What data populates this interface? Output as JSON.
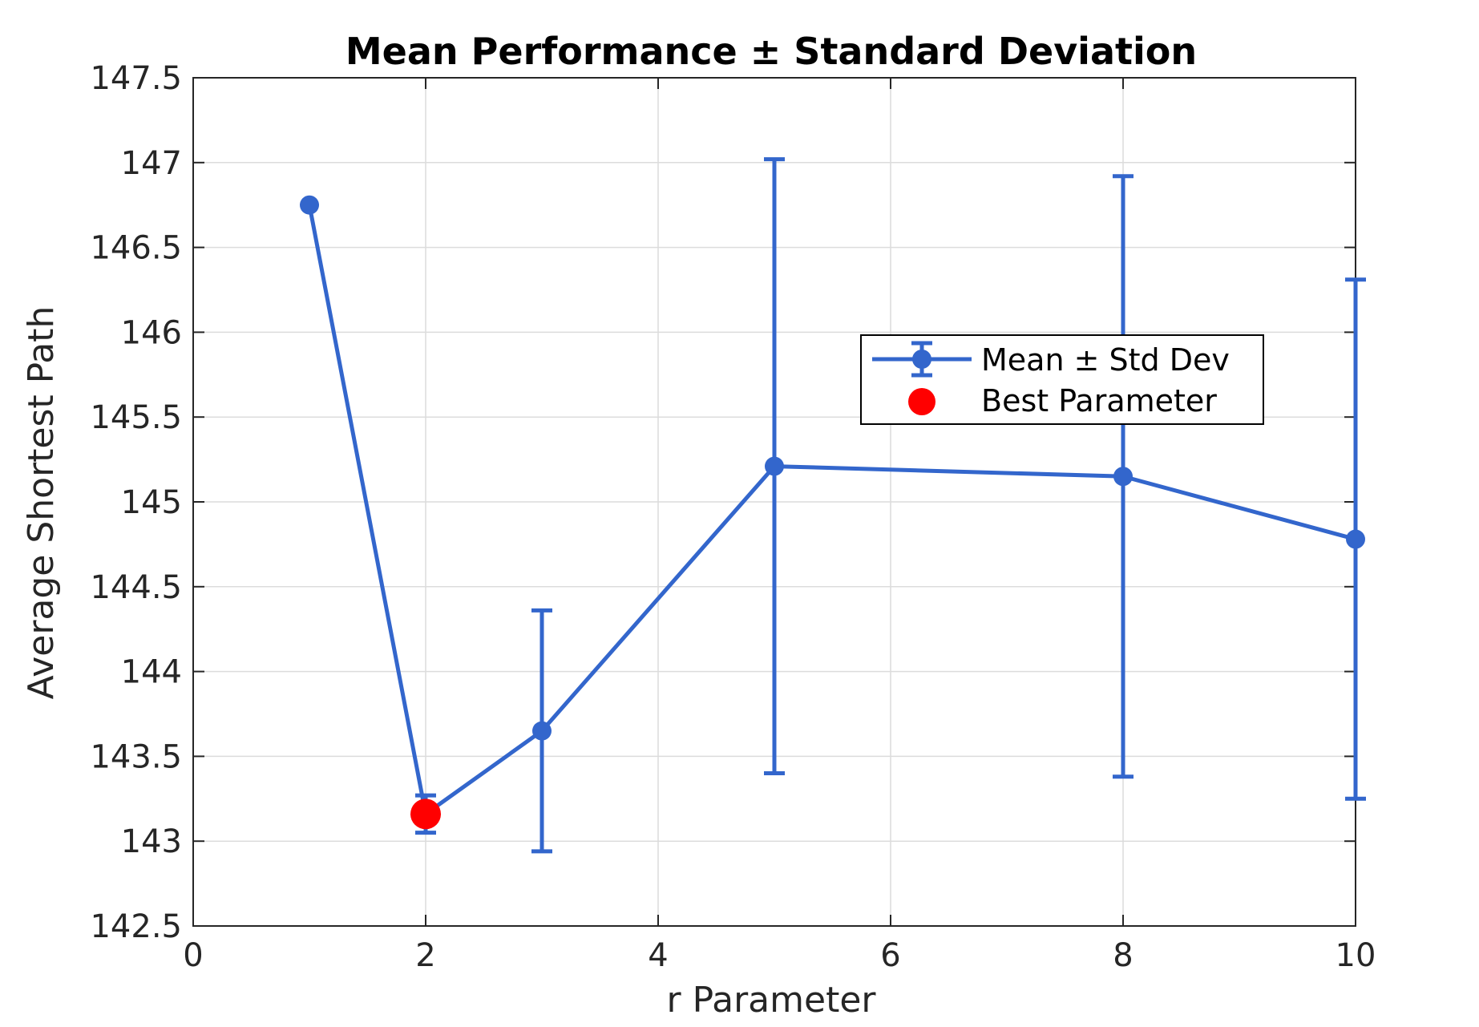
{
  "chart_data": {
    "type": "line",
    "title": "Mean Performance ± Standard Deviation",
    "xlabel": "r Parameter",
    "ylabel": "Average Shortest Path",
    "xlim": [
      0,
      10
    ],
    "ylim": [
      142.5,
      147.5
    ],
    "xticks": [
      0,
      2,
      4,
      6,
      8,
      10
    ],
    "xtick_labels": [
      "0",
      "2",
      "4",
      "6",
      "8",
      "10"
    ],
    "yticks": [
      142.5,
      143,
      143.5,
      144,
      144.5,
      145,
      145.5,
      146,
      146.5,
      147,
      147.5
    ],
    "ytick_labels": [
      "142.5",
      "143",
      "143.5",
      "144",
      "144.5",
      "145",
      "145.5",
      "146",
      "146.5",
      "147",
      "147.5"
    ],
    "grid": true,
    "legend_position": "center-right",
    "series": [
      {
        "name": "Mean ± Std Dev",
        "color": "#3366CC",
        "x": [
          1,
          2,
          3,
          5,
          8,
          10
        ],
        "y": [
          146.75,
          143.16,
          143.65,
          145.21,
          145.15,
          144.78
        ],
        "std": [
          0.0,
          0.11,
          0.71,
          1.81,
          1.77,
          1.53
        ]
      },
      {
        "name": "Best Parameter",
        "color": "#FF0000",
        "x": [
          2
        ],
        "y": [
          143.16
        ]
      }
    ]
  }
}
